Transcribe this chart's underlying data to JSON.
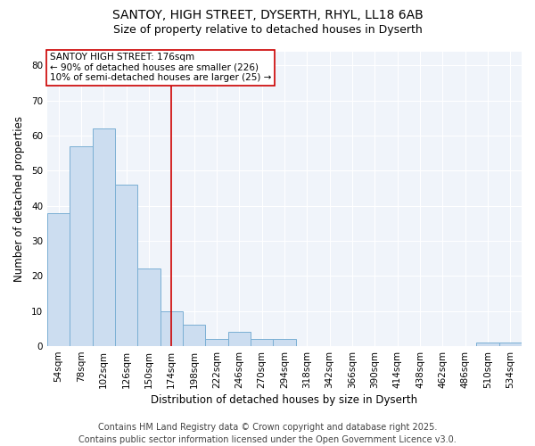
{
  "title1": "SANTOY, HIGH STREET, DYSERTH, RHYL, LL18 6AB",
  "title2": "Size of property relative to detached houses in Dyserth",
  "xlabel": "Distribution of detached houses by size in Dyserth",
  "ylabel": "Number of detached properties",
  "categories": [
    "54sqm",
    "78sqm",
    "102sqm",
    "126sqm",
    "150sqm",
    "174sqm",
    "198sqm",
    "222sqm",
    "246sqm",
    "270sqm",
    "294sqm",
    "318sqm",
    "342sqm",
    "366sqm",
    "390sqm",
    "414sqm",
    "438sqm",
    "462sqm",
    "486sqm",
    "510sqm",
    "534sqm"
  ],
  "values": [
    38,
    57,
    62,
    46,
    22,
    10,
    6,
    2,
    4,
    2,
    2,
    0,
    0,
    0,
    0,
    0,
    0,
    0,
    0,
    1,
    1
  ],
  "bar_color": "#ccddf0",
  "bar_edge_color": "#7aafd4",
  "vline_x_index": 5,
  "vline_color": "#cc0000",
  "annotation_text": "SANTOY HIGH STREET: 176sqm\n← 90% of detached houses are smaller (226)\n10% of semi-detached houses are larger (25) →",
  "annotation_box_facecolor": "#ffffff",
  "annotation_box_edgecolor": "#cc0000",
  "ylim": [
    0,
    84
  ],
  "yticks": [
    0,
    10,
    20,
    30,
    40,
    50,
    60,
    70,
    80
  ],
  "footer_text": "Contains HM Land Registry data © Crown copyright and database right 2025.\nContains public sector information licensed under the Open Government Licence v3.0.",
  "fig_bg_color": "#ffffff",
  "plot_bg_color": "#f0f4fa",
  "grid_color": "#ffffff",
  "title_fontsize": 10,
  "subtitle_fontsize": 9,
  "axis_label_fontsize": 8.5,
  "tick_fontsize": 7.5,
  "annotation_fontsize": 7.5,
  "footer_fontsize": 7
}
